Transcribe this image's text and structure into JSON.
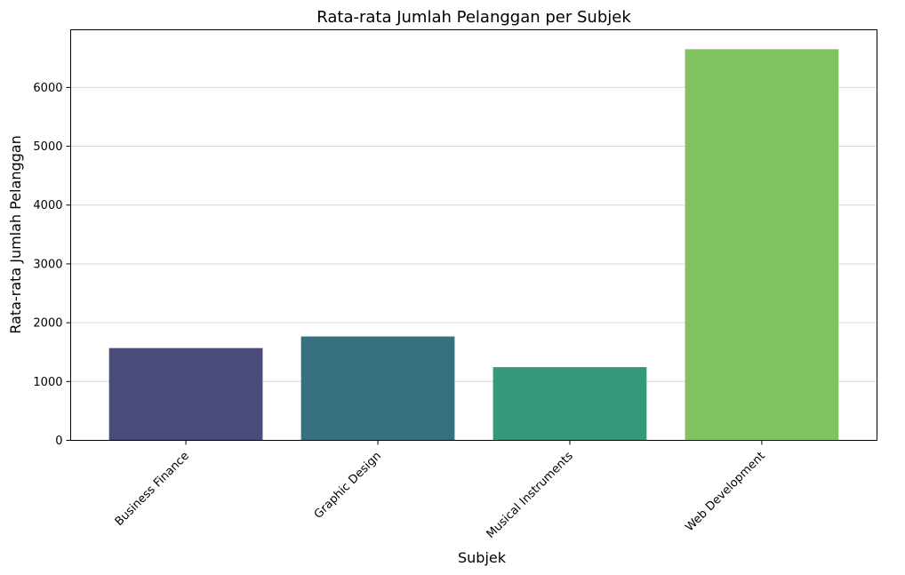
{
  "chart_data": {
    "type": "bar",
    "title": "Rata-rata Jumlah Pelanggan per Subjek",
    "xlabel": "Subjek",
    "ylabel": "Rata-rata Jumlah Pelanggan",
    "categories": [
      "Business Finance",
      "Graphic Design",
      "Musical Instruments",
      "Web Development"
    ],
    "values": [
      1569,
      1766,
      1245,
      6650
    ],
    "ylim": [
      0,
      6980
    ],
    "yticks": [
      0,
      1000,
      2000,
      3000,
      4000,
      5000,
      6000
    ],
    "grid": "y",
    "colors": [
      "#4a4b7b",
      "#367180",
      "#35987b",
      "#80c25f"
    ]
  }
}
